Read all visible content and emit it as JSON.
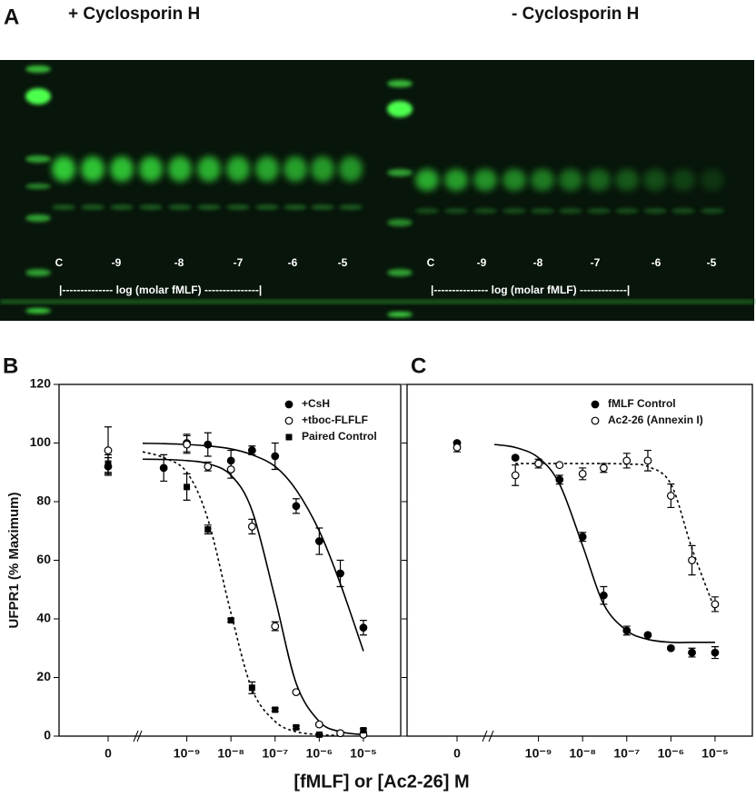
{
  "gel": {
    "panel_label": "A",
    "left_title": "+ Cyclosporin H",
    "right_title": "- Cyclosporin H",
    "left_lanes": [
      "C",
      "-9",
      "-8",
      "-7",
      "-6",
      "-5"
    ],
    "right_lanes": [
      "C",
      "-9",
      "-8",
      "-7",
      "-6",
      "-5"
    ],
    "left_axis": "|-------------- log (molar fMLF) ---------------|",
    "right_axis": "|--------------- log (molar fMLF) -------------|"
  },
  "chart_data": [
    {
      "type": "scatter",
      "panel_label": "B",
      "y_label": "UFPR1  (% Maximum)",
      "x_label": "[fMLF] or [Ac2-26] M",
      "log_x": true,
      "xlim": [
        1e-10,
        7e-05
      ],
      "ylim": [
        0,
        120
      ],
      "yticks": [
        0,
        20,
        40,
        60,
        80,
        100,
        120
      ],
      "show_ytick_labels": true,
      "xticks": [
        0,
        {
          "value": 1e-09,
          "label": "10⁻⁹"
        },
        {
          "value": 1e-08,
          "label": "10⁻⁸"
        },
        {
          "value": 1e-07,
          "label": "10⁻⁷"
        },
        {
          "value": 1e-06,
          "label": "10⁻⁶"
        },
        {
          "value": 1e-05,
          "label": "10⁻⁵"
        }
      ],
      "legend": "top-right",
      "series": [
        {
          "name": "+CsH",
          "marker": "filled-circle",
          "color": "#000000",
          "x": [
            0,
            3e-10,
            1e-09,
            3e-09,
            1e-08,
            3e-08,
            1e-07,
            3e-07,
            1e-06,
            3e-06,
            1e-05
          ],
          "values": [
            92,
            91.5,
            100,
            99.5,
            94,
            97.5,
            95.5,
            78.5,
            66.5,
            55.5,
            37
          ],
          "errors": [
            3,
            4.5,
            3,
            4,
            3.5,
            1.5,
            4.5,
            2.5,
            4.5,
            4.5,
            2.5
          ]
        },
        {
          "name": "+tboc-FLFLF",
          "marker": "open-circle",
          "color": "#000000",
          "x": [
            0,
            1e-09,
            3e-09,
            1e-08,
            3e-08,
            1e-07,
            3e-07,
            1e-06,
            3e-06,
            1e-05
          ],
          "values": [
            97.5,
            99.5,
            92,
            91,
            71.5,
            37.5,
            15,
            4,
            1,
            0.5
          ],
          "errors": [
            8,
            3,
            1.5,
            3,
            2.5,
            1.5,
            0.5,
            0.5,
            0.5,
            0.5
          ]
        },
        {
          "name": "Paired Control",
          "marker": "filled-square",
          "color": "#000000",
          "x": [
            0,
            1e-09,
            3e-09,
            1e-08,
            3e-08,
            1e-07,
            3e-07,
            1e-06,
            1e-05
          ],
          "values": [
            93,
            85,
            70.5,
            39.5,
            16.5,
            9,
            3,
            0.5,
            2
          ],
          "errors": [
            3,
            4.5,
            1.5,
            0.5,
            2,
            0.5,
            0.5,
            0.3,
            0.5
          ]
        }
      ],
      "fits": [
        {
          "line_style": "solid",
          "x": [
            1e-10,
            3e-10,
            1e-09,
            3e-09,
            1e-08,
            3e-08,
            1e-07,
            3e-07,
            1e-06,
            3e-06,
            1e-05
          ],
          "values": [
            99.9,
            99.8,
            99.5,
            99,
            98,
            96,
            92,
            84,
            70,
            52,
            29
          ]
        },
        {
          "line_style": "solid",
          "x": [
            1e-10,
            3e-10,
            1e-09,
            3e-09,
            1e-08,
            3e-08,
            1e-07,
            3e-07,
            1e-06,
            3e-06,
            1e-05
          ],
          "values": [
            94.5,
            94.4,
            94,
            93,
            89,
            77,
            47,
            18,
            5,
            1.5,
            0.5
          ]
        },
        {
          "line_style": "dashed",
          "x": [
            1e-10,
            3e-10,
            1e-09,
            3e-09,
            1e-08,
            3e-08,
            1e-07,
            3e-07,
            1e-06,
            3e-06
          ],
          "values": [
            97,
            95,
            90,
            74,
            42,
            16,
            5,
            1.5,
            0.5,
            0.2
          ]
        }
      ]
    },
    {
      "type": "scatter",
      "panel_label": "C",
      "log_x": true,
      "xlim": [
        1e-10,
        7e-05
      ],
      "ylim": [
        0,
        120
      ],
      "yticks": [
        0,
        20,
        40,
        60,
        80,
        100,
        120
      ],
      "show_ytick_labels": false,
      "xticks": [
        0,
        {
          "value": 1e-09,
          "label": "10⁻⁹"
        },
        {
          "value": 1e-08,
          "label": "10⁻⁸"
        },
        {
          "value": 1e-07,
          "label": "10⁻⁷"
        },
        {
          "value": 1e-06,
          "label": "10⁻⁶"
        },
        {
          "value": 1e-05,
          "label": "10⁻⁵"
        }
      ],
      "legend": "top-right",
      "series": [
        {
          "name": "fMLF Control",
          "marker": "filled-circle",
          "color": "#000000",
          "x": [
            0,
            3e-10,
            1e-09,
            3e-09,
            1e-08,
            3e-08,
            1e-07,
            3e-07,
            1e-06,
            3e-06,
            1e-05
          ],
          "values": [
            100,
            95,
            93,
            87.5,
            68,
            48,
            36,
            34.5,
            30,
            28.5,
            28.5
          ],
          "errors": [
            0.5,
            0.5,
            1.5,
            1.5,
            1.5,
            3,
            1.5,
            0.5,
            0.5,
            1.5,
            2
          ]
        },
        {
          "name": "Ac2-26 (Annexin I)",
          "marker": "open-circle",
          "color": "#000000",
          "x": [
            0,
            3e-10,
            1e-09,
            3e-09,
            1e-08,
            3e-08,
            1e-07,
            3e-07,
            1e-06,
            3e-06,
            1e-05
          ],
          "values": [
            98.5,
            89,
            93,
            92.5,
            89.5,
            91.5,
            94,
            94,
            82,
            60,
            45
          ],
          "errors": [
            1.5,
            3.5,
            0.5,
            0.5,
            2,
            1.5,
            2.5,
            3.5,
            4,
            5,
            2.5
          ]
        }
      ],
      "fits": [
        {
          "line_style": "solid",
          "x": [
            1e-10,
            3e-10,
            1e-09,
            3e-09,
            1e-08,
            3e-08,
            1e-07,
            3e-07,
            1e-06,
            3e-06,
            1e-05
          ],
          "values": [
            99.5,
            98.5,
            95,
            86,
            65,
            45,
            36,
            33,
            32,
            32,
            32
          ]
        },
        {
          "line_style": "dashed",
          "x": [
            3e-10,
            1e-09,
            3e-09,
            1e-08,
            3e-08,
            1e-07,
            3e-07,
            1e-06,
            3e-06,
            1e-05
          ],
          "values": [
            93,
            93,
            93,
            93,
            93,
            92.8,
            92,
            86,
            64,
            43
          ]
        }
      ]
    }
  ]
}
